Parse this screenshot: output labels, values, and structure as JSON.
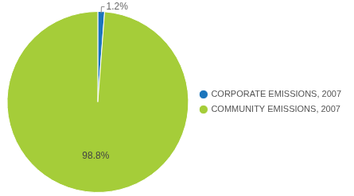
{
  "chart_data": {
    "type": "pie",
    "categories": [
      "CORPORATE EMISSIONS, 2007",
      "COMMUNITY EMISSIONS, 2007"
    ],
    "values": [
      1.2,
      98.8
    ],
    "value_labels": [
      "1.2%",
      "98.8%"
    ],
    "colors": [
      "#1b75bc",
      "#a5cd39"
    ],
    "data_labels": true,
    "legend": "right"
  }
}
